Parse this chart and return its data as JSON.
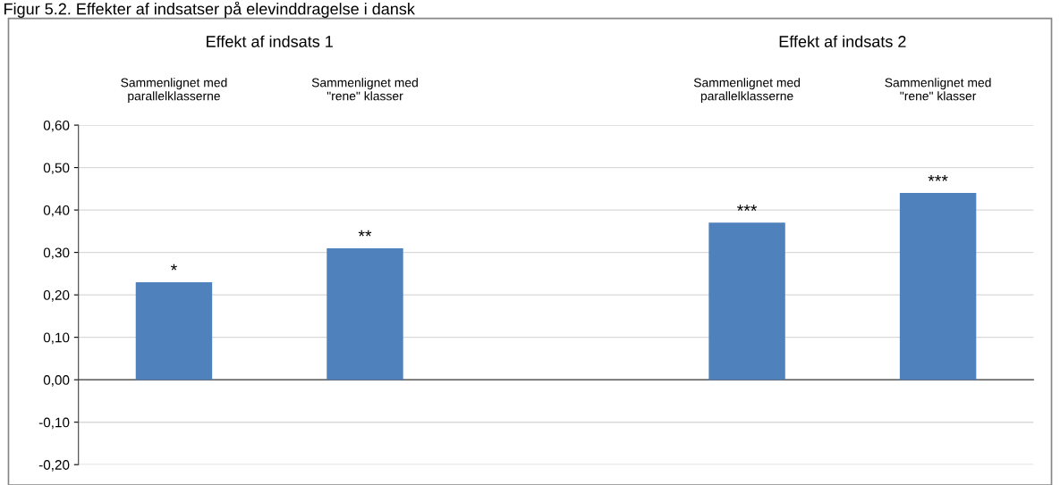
{
  "chart_data": {
    "type": "bar",
    "title": "Figur 5.2. Effekter af indsatser på elevinddragelse i dansk",
    "categories": [
      "Sammenlignet med\nparallelklasserne",
      "Sammenlignet med\n\"rene\" klasser",
      null,
      "Sammenlignet med\nparallelklasserne",
      "Sammenlignet med\n\"rene\" klasser"
    ],
    "values": [
      0.23,
      0.31,
      null,
      0.37,
      0.44
    ],
    "value_labels": [
      "*",
      "**",
      null,
      "***",
      "***"
    ],
    "color": "#4f81bd",
    "annotations": [
      "Effekt af indsats 1",
      "Effekt af indsats 2"
    ],
    "ylim": [
      -0.2,
      0.6
    ],
    "yticks": [
      {
        "value": -0.2,
        "label": "-0,20"
      },
      {
        "value": -0.1,
        "label": "-0,10"
      },
      {
        "value": 0,
        "label": "0,00"
      },
      {
        "value": 0.1,
        "label": "0,10"
      },
      {
        "value": 0.2,
        "label": "0,20"
      },
      {
        "value": 0.3,
        "label": "0,30"
      },
      {
        "value": 0.4,
        "label": "0,40"
      },
      {
        "value": 0.5,
        "label": "0,50"
      },
      {
        "value": 0.6,
        "label": "0,60"
      }
    ],
    "grid": "y"
  }
}
